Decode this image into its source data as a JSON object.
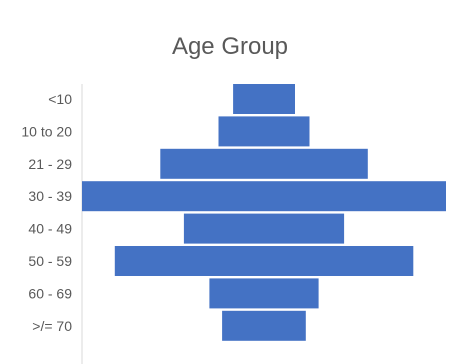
{
  "chart_data": {
    "type": "bar",
    "orientation": "horizontal",
    "layout": "centered",
    "title": "Age Group",
    "categories": [
      "<10",
      "10 to 20",
      "21 - 29",
      "30 - 39",
      "40 - 49",
      "50 - 59",
      "60 - 69",
      ">/= 70"
    ],
    "values": [
      17,
      25,
      57,
      100,
      44,
      82,
      30,
      23
    ],
    "bar_color": "#4472C4",
    "axis_color": "#d9d9d9",
    "grid": false,
    "legend": "none"
  }
}
